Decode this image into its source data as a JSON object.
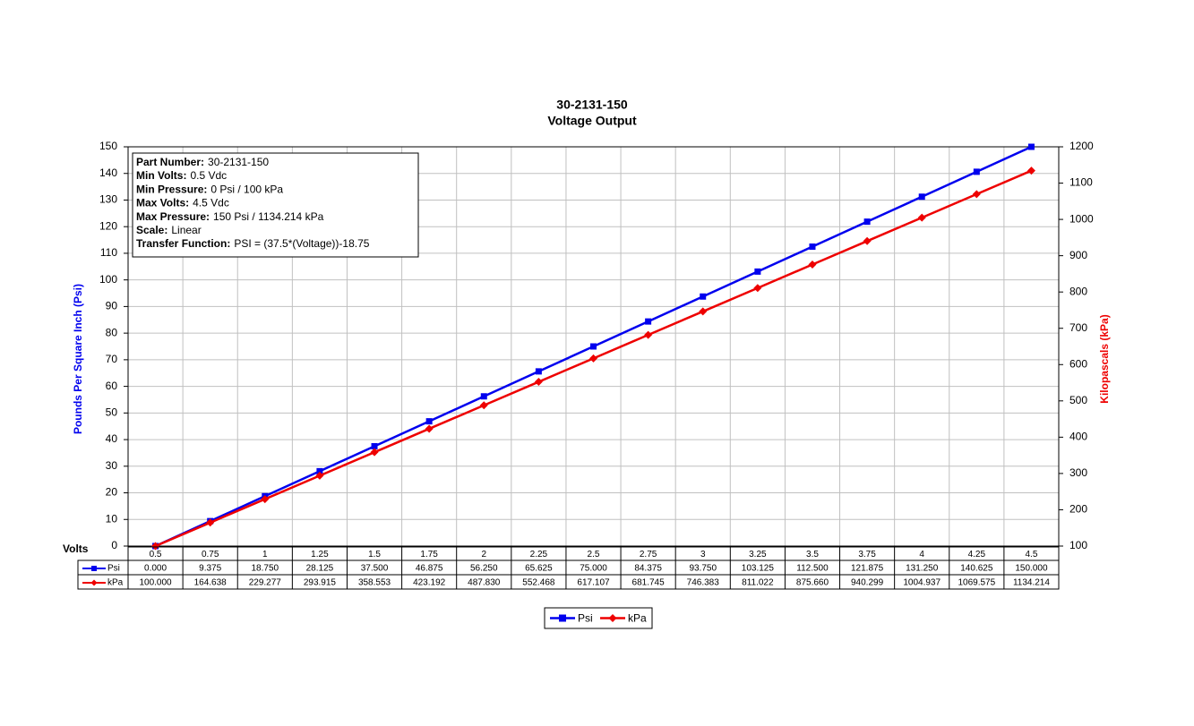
{
  "chart_data": {
    "type": "line",
    "title": "30-2131-150",
    "subtitle": "Voltage Output",
    "x_label": "Volts",
    "y_label": "Pounds Per Square Inch (Psi)",
    "y2_label": "Kilopascals (kPa)",
    "categories": [
      "0.5",
      "0.75",
      "1",
      "1.25",
      "1.5",
      "1.75",
      "2",
      "2.25",
      "2.5",
      "2.75",
      "3",
      "3.25",
      "3.5",
      "3.75",
      "4",
      "4.25",
      "4.5"
    ],
    "series": [
      {
        "name": "Psi",
        "color": "#0000ee",
        "marker": "square",
        "values": [
          0,
          9.375,
          18.75,
          28.125,
          37.5,
          46.875,
          56.25,
          65.625,
          75,
          84.375,
          93.75,
          103.125,
          112.5,
          121.875,
          131.25,
          140.625,
          150
        ],
        "value_labels": [
          "0.000",
          "9.375",
          "18.750",
          "28.125",
          "37.500",
          "46.875",
          "56.250",
          "65.625",
          "75.000",
          "84.375",
          "93.750",
          "103.125",
          "112.500",
          "121.875",
          "131.250",
          "140.625",
          "150.000"
        ]
      },
      {
        "name": "kPa",
        "color": "#ee0000",
        "marker": "diamond",
        "axis": "y2",
        "values": [
          100,
          164.638,
          229.277,
          293.915,
          358.553,
          423.192,
          487.83,
          552.468,
          617.107,
          681.745,
          746.383,
          811.022,
          875.66,
          940.299,
          1004.937,
          1069.575,
          1134.214
        ],
        "value_labels": [
          "100.000",
          "164.638",
          "229.277",
          "293.915",
          "358.553",
          "423.192",
          "487.830",
          "552.468",
          "617.107",
          "681.745",
          "746.383",
          "811.022",
          "875.660",
          "940.299",
          "1004.937",
          "1069.575",
          "1134.214"
        ]
      }
    ],
    "ylim": [
      0,
      150
    ],
    "yticks": [
      0,
      10,
      20,
      30,
      40,
      50,
      60,
      70,
      80,
      90,
      100,
      110,
      120,
      130,
      140,
      150
    ],
    "y2lim": [
      100,
      1200
    ],
    "y2ticks": [
      100,
      200,
      300,
      400,
      500,
      600,
      700,
      800,
      900,
      1000,
      1100,
      1200
    ],
    "grid": true,
    "legend": "bottom",
    "info_box": [
      {
        "label": "Part Number:",
        "value": "30-2131-150"
      },
      {
        "label": "Min Volts:",
        "value": "0.5 Vdc"
      },
      {
        "label": "Min Pressure:",
        "value": "0 Psi / 100 kPa"
      },
      {
        "label": "Max Volts:",
        "value": "4.5 Vdc"
      },
      {
        "label": "Max Pressure:",
        "value": "150 Psi / 1134.214 kPa"
      },
      {
        "label": "Scale:",
        "value": "Linear"
      },
      {
        "label": "Transfer Function:",
        "value": "PSI = (37.5*(Voltage))-18.75"
      }
    ]
  }
}
